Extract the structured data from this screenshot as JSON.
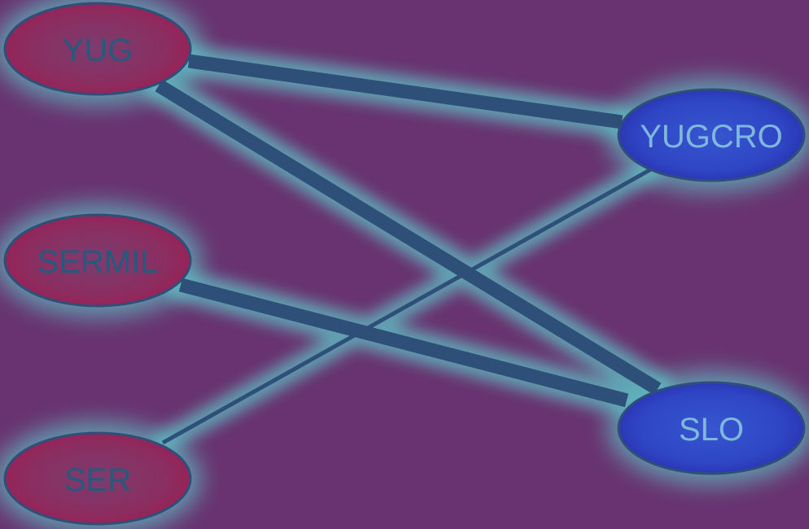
{
  "colors": {
    "background": "#683370",
    "edge": "#2e4f78",
    "glow": "#5fc4c8",
    "group_left_fill": "#8f2a5c",
    "group_right_fill": "#2f49c4",
    "group_left_text": "#255a7e",
    "group_right_text": "#7fb8dc"
  },
  "nodes": [
    {
      "id": "yug",
      "label": "YUG",
      "group": "left"
    },
    {
      "id": "sermil",
      "label": "SERMIL",
      "group": "left"
    },
    {
      "id": "ser",
      "label": "SER",
      "group": "left"
    },
    {
      "id": "yugcro",
      "label": "YUGCRO",
      "group": "right"
    },
    {
      "id": "slo",
      "label": "SLO",
      "group": "right"
    }
  ],
  "edges": [
    {
      "from": "yug",
      "to": "yugcro",
      "weight": "heavy"
    },
    {
      "from": "yug",
      "to": "slo",
      "weight": "heavy"
    },
    {
      "from": "sermil",
      "to": "slo",
      "weight": "heavy"
    },
    {
      "from": "ser",
      "to": "yugcro",
      "weight": "light"
    }
  ]
}
